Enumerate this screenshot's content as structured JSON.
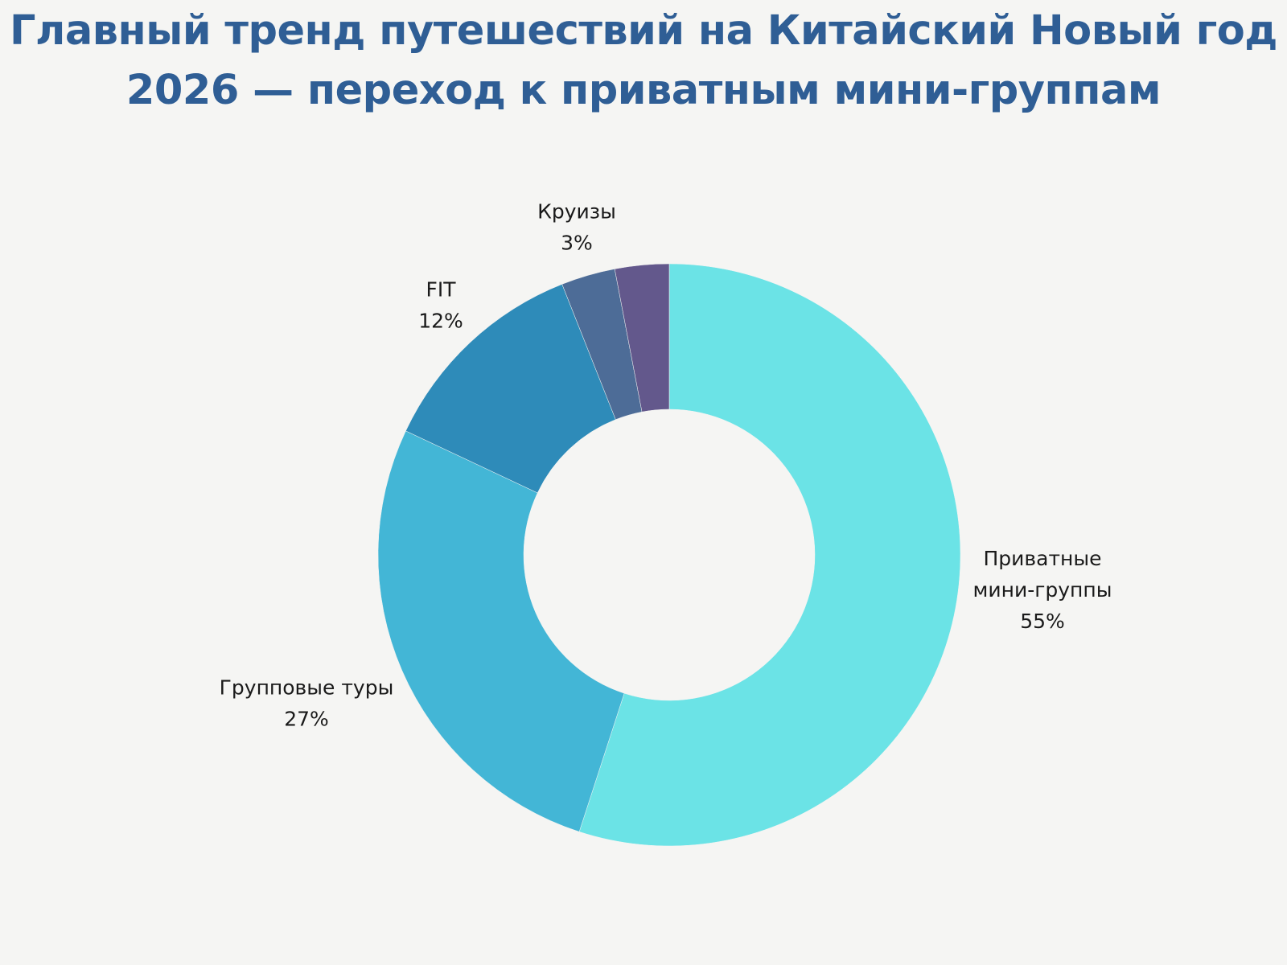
{
  "title": {
    "line1": "Главный тренд путешествий на Китайский Новый год",
    "line2": "2026 — переход к приватным мини-группам"
  },
  "chart_data": {
    "type": "pie",
    "donut": true,
    "title": "Главный тренд путешествий на Китайский Новый год 2026 — переход к приватным мини-группам",
    "slices": [
      {
        "label": "Приватные мини-группы",
        "label_lines": [
          "Приватные",
          "мини-группы"
        ],
        "value": 55,
        "value_label": "55%",
        "color": "#6be3e6"
      },
      {
        "label": "Групповые туры",
        "label_lines": [
          "Групповые туры"
        ],
        "value": 27,
        "value_label": "27%",
        "color": "#43b6d6"
      },
      {
        "label": "FIT",
        "label_lines": [
          "FIT"
        ],
        "value": 12,
        "value_label": "12%",
        "color": "#2e8bb9"
      },
      {
        "label": "Круизы",
        "label_lines": [
          "Круизы"
        ],
        "value": 3,
        "value_label": "3%",
        "color": "#4d6c97"
      },
      {
        "label": "",
        "label_lines": [],
        "value": 3,
        "value_label": "",
        "color": "#63588c"
      }
    ]
  }
}
